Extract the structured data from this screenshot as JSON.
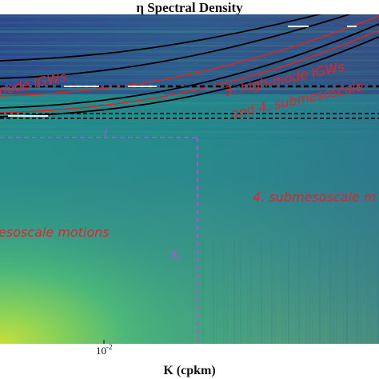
{
  "chart_data": {
    "type": "heatmap",
    "title": "Spectral Density",
    "title_symbol": "η",
    "xlabel": "K (cpkm)",
    "x_scale": "log",
    "x_ticks": [
      {
        "base": "10",
        "exp": "-2"
      }
    ],
    "colormap": "viridis",
    "grid": false,
    "legend": "none",
    "region_labels": [
      {
        "text": "mode IGWs",
        "color": "#e0242b"
      },
      {
        "text": "3. high-mode IGWs",
        "color": "#e0242b"
      },
      {
        "text": "and 4. submesoscale",
        "color": "#e0242b"
      },
      {
        "text": "4. submesoscale m",
        "color": "#e0242b"
      },
      {
        "text": "esoscale motions",
        "color": "#e0242b"
      }
    ],
    "markers": [
      {
        "text": "f",
        "color": "#c24bd6"
      },
      {
        "text": "K",
        "subscript": "c",
        "color": "#c24bd6"
      }
    ],
    "overlay_colors": {
      "dispersion_black": "#000000",
      "dispersion_red": "#d02a22",
      "threshold_box": "#c24bd6"
    }
  }
}
